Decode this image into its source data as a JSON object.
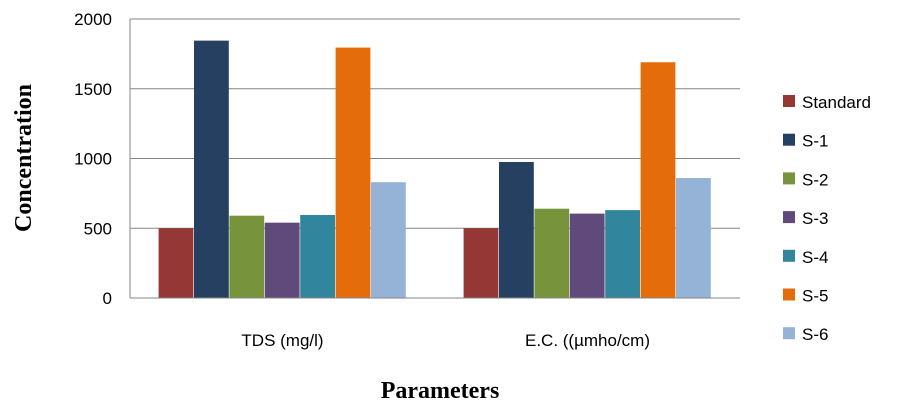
{
  "chart_data": {
    "type": "bar",
    "title": "",
    "xlabel": "Parameters",
    "ylabel": "Concentration",
    "ylim": [
      0,
      2000
    ],
    "yticks": [
      0,
      500,
      1000,
      1500,
      2000
    ],
    "grid": true,
    "legend_position": "right",
    "categories": [
      "TDS (mg/l)",
      "E.C. ((µmho/cm)"
    ],
    "series": [
      {
        "name": "Standard",
        "color": "#953735",
        "values": [
          500,
          500
        ]
      },
      {
        "name": "S-1",
        "color": "#254061",
        "values": [
          1845,
          975
        ]
      },
      {
        "name": "S-2",
        "color": "#77933C",
        "values": [
          590,
          640
        ]
      },
      {
        "name": "S-3",
        "color": "#604A7B",
        "values": [
          540,
          605
        ]
      },
      {
        "name": "S-4",
        "color": "#31859C",
        "values": [
          595,
          630
        ]
      },
      {
        "name": "S-5",
        "color": "#E46C0A",
        "values": [
          1795,
          1690
        ]
      },
      {
        "name": "S-6",
        "color": "#95B3D7",
        "values": [
          830,
          860
        ]
      }
    ]
  }
}
